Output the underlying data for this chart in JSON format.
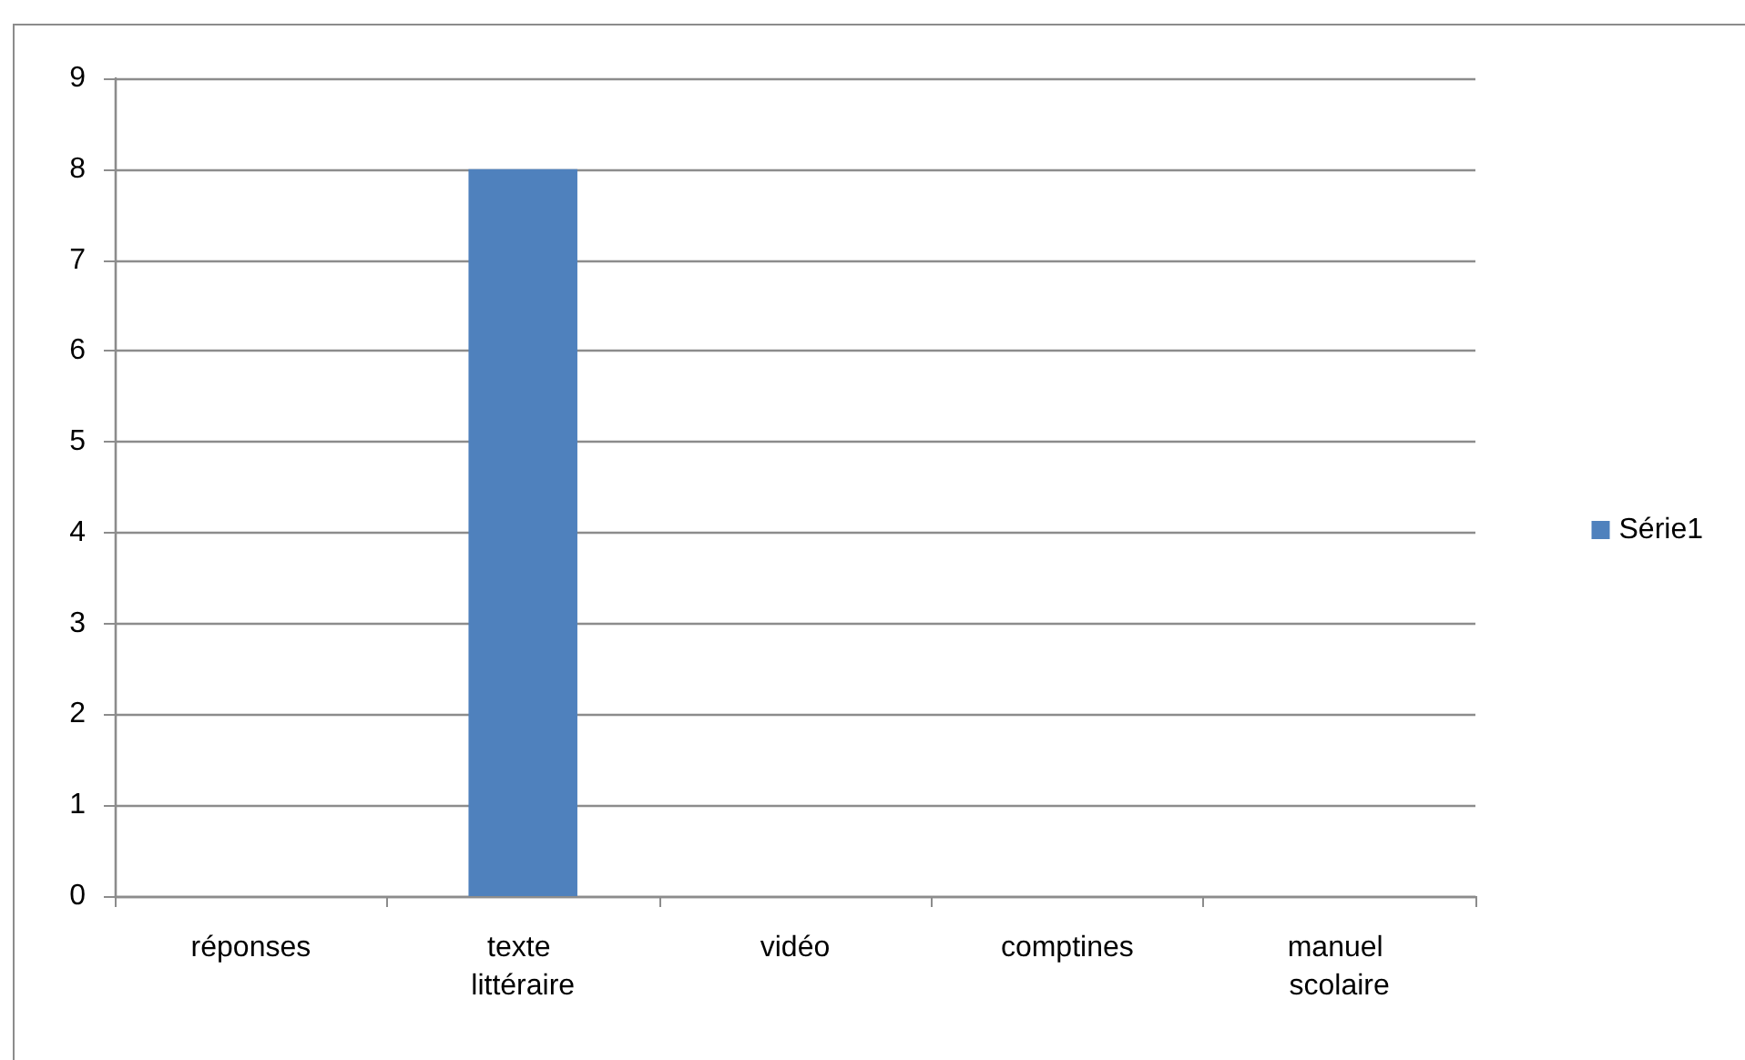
{
  "chart_data": {
    "type": "bar",
    "categories": [
      "réponses",
      "texte littéraire",
      "vidéo",
      "comptines",
      "manuel scolaire"
    ],
    "series": [
      {
        "name": "Série1",
        "color": "#4f81bd",
        "values": [
          0,
          8,
          0,
          0,
          0
        ]
      }
    ],
    "ylim": [
      0,
      9
    ],
    "yticks": [
      0,
      1,
      2,
      3,
      4,
      5,
      6,
      7,
      8,
      9
    ],
    "grid": "y",
    "legend": "right"
  }
}
